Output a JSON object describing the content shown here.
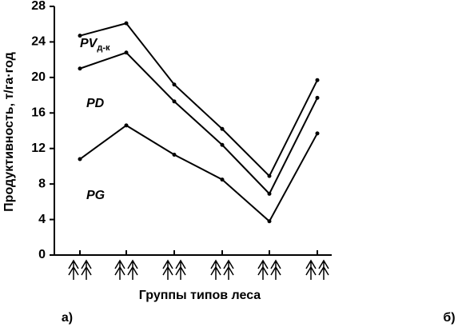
{
  "chart_data": {
    "type": "line",
    "y_label": "Продуктивность, т/га·год",
    "x_label": "Группы типов леса",
    "panel_labels": [
      "а)",
      "б)"
    ],
    "categories": [
      null,
      null,
      null,
      null,
      null,
      null
    ],
    "series": [
      {
        "name": "PV",
        "subscript": "д-к",
        "color": "#000000",
        "values": [
          24.7,
          26.1,
          19.2,
          14.2,
          8.9,
          19.7
        ]
      },
      {
        "name": "PD",
        "color": "#000000",
        "values": [
          21.0,
          22.8,
          17.3,
          12.4,
          6.9,
          17.7
        ]
      },
      {
        "name": "PG",
        "color": "#000000",
        "values": [
          10.8,
          14.6,
          11.3,
          8.5,
          3.8,
          13.7
        ]
      }
    ],
    "ylim": [
      0,
      28
    ],
    "yticks": [
      0,
      4,
      8,
      12,
      16,
      20,
      24,
      28
    ]
  }
}
